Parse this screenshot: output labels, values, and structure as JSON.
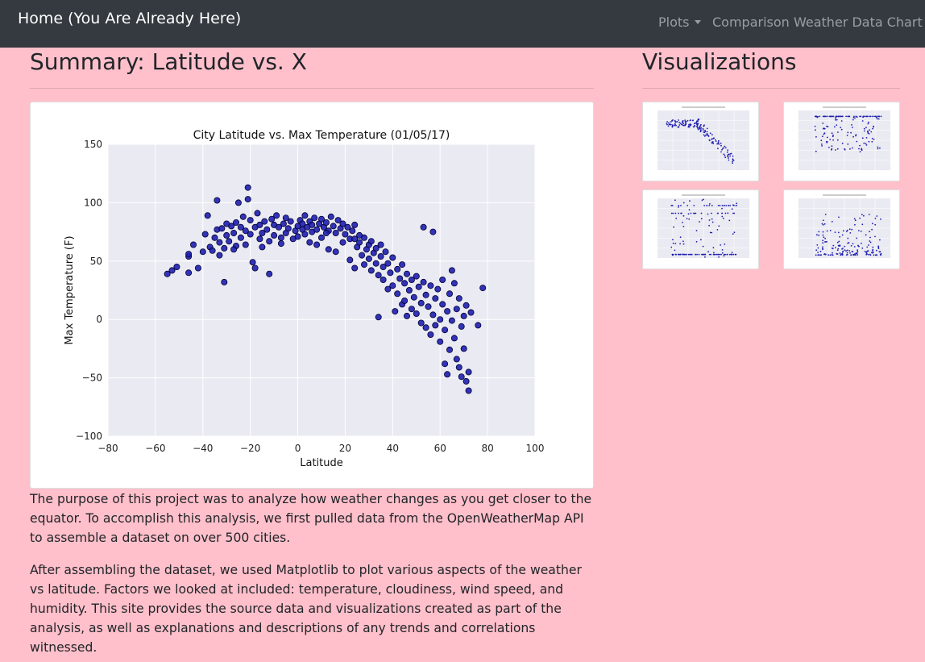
{
  "nav": {
    "brand": "Home (You Are Already Here)",
    "items": [
      {
        "label": "Plots",
        "dropdown": true
      },
      {
        "label": "Comparison"
      },
      {
        "label": "Weather Data Chart"
      }
    ]
  },
  "main": {
    "title": "Summary: Latitude vs. X",
    "paragraphs": [
      "The purpose of this project was to analyze how weather changes as you get closer to the equator. To accomplish this analysis, we first pulled data from the OpenWeatherMap API to assemble a dataset on over 500 cities.",
      "After assembling the dataset, we used Matplotlib to plot various aspects of the weather vs latitude. Factors we looked at included: temperature, cloudiness, wind speed, and humidity. This site provides the source data and visualizations created as part of the analysis, as well as explanations and descriptions of any trends and correlations witnessed."
    ]
  },
  "sidebar": {
    "title": "Visualizations",
    "thumbnails": [
      {
        "title": "City Latitude vs. Max Temperature (01/05/17)"
      },
      {
        "title": "City Latitude vs. Humidity (01/05/17)"
      },
      {
        "title": "City Latitude vs. Cloudiness (01/05/17)"
      },
      {
        "title": "City Latitude vs. Wind Speed (01/05/17)"
      }
    ]
  },
  "colors": {
    "background": "#ffc0cb",
    "navbar": "#343a40",
    "plot_bg": "#eaeaf2",
    "marker": "#1f1fb0",
    "marker_edge": "#000033"
  },
  "chart_data": {
    "type": "scatter",
    "title": "City Latitude vs. Max Temperature (01/05/17)",
    "xlabel": "Latitude",
    "ylabel": "Max Temperature (F)",
    "xlim": [
      -80,
      100
    ],
    "ylim": [
      -100,
      150
    ],
    "xticks": [
      -80,
      -60,
      -40,
      -20,
      0,
      20,
      40,
      60,
      80,
      100
    ],
    "yticks": [
      -100,
      -50,
      0,
      50,
      100,
      150
    ],
    "grid": true,
    "points": [
      [
        -55,
        39
      ],
      [
        -53,
        42
      ],
      [
        -51,
        45
      ],
      [
        -46,
        54
      ],
      [
        -46,
        40
      ],
      [
        -46,
        56
      ],
      [
        -44,
        64
      ],
      [
        -42,
        44
      ],
      [
        -40,
        58
      ],
      [
        -39,
        73
      ],
      [
        -38,
        89
      ],
      [
        -37,
        62
      ],
      [
        -36,
        59
      ],
      [
        -35,
        70
      ],
      [
        -34,
        77
      ],
      [
        -34,
        102
      ],
      [
        -33,
        66
      ],
      [
        -33,
        55
      ],
      [
        -32,
        78
      ],
      [
        -31,
        32
      ],
      [
        -31,
        61
      ],
      [
        -30,
        72
      ],
      [
        -29,
        67
      ],
      [
        -28,
        80
      ],
      [
        -27,
        74
      ],
      [
        -26,
        63
      ],
      [
        -26,
        83
      ],
      [
        -25,
        100
      ],
      [
        -24,
        79
      ],
      [
        -24,
        70
      ],
      [
        -23,
        88
      ],
      [
        -22,
        76
      ],
      [
        -22,
        64
      ],
      [
        -21,
        103
      ],
      [
        -21,
        113
      ],
      [
        -20,
        85
      ],
      [
        -20,
        73
      ],
      [
        -19,
        49
      ],
      [
        -18,
        79
      ],
      [
        -18,
        44
      ],
      [
        -17,
        91
      ],
      [
        -16,
        81
      ],
      [
        -16,
        69
      ],
      [
        -15,
        74
      ],
      [
        -14,
        84
      ],
      [
        -13,
        77
      ],
      [
        -12,
        39
      ],
      [
        -12,
        67
      ],
      [
        -11,
        86
      ],
      [
        -10,
        81
      ],
      [
        -10,
        72
      ],
      [
        -9,
        89
      ],
      [
        -8,
        79
      ],
      [
        -7,
        65
      ],
      [
        -6,
        82
      ],
      [
        -5,
        87
      ],
      [
        -5,
        74
      ],
      [
        -4,
        78
      ],
      [
        -3,
        84
      ],
      [
        -2,
        69
      ],
      [
        -1,
        76
      ],
      [
        0,
        80
      ],
      [
        0,
        71
      ],
      [
        1,
        85
      ],
      [
        2,
        77
      ],
      [
        2,
        82
      ],
      [
        3,
        89
      ],
      [
        3,
        73
      ],
      [
        4,
        79
      ],
      [
        5,
        84
      ],
      [
        6,
        75
      ],
      [
        6,
        81
      ],
      [
        7,
        87
      ],
      [
        8,
        64
      ],
      [
        8,
        77
      ],
      [
        9,
        82
      ],
      [
        10,
        70
      ],
      [
        10,
        86
      ],
      [
        11,
        79
      ],
      [
        12,
        83
      ],
      [
        13,
        60
      ],
      [
        13,
        76
      ],
      [
        14,
        88
      ],
      [
        15,
        80
      ],
      [
        16,
        58
      ],
      [
        16,
        74
      ],
      [
        17,
        85
      ],
      [
        18,
        78
      ],
      [
        19,
        66
      ],
      [
        19,
        82
      ],
      [
        20,
        73
      ],
      [
        21,
        79
      ],
      [
        22,
        51
      ],
      [
        22,
        69
      ],
      [
        23,
        76
      ],
      [
        24,
        44
      ],
      [
        24,
        81
      ],
      [
        25,
        62
      ],
      [
        26,
        72
      ],
      [
        26,
        66
      ],
      [
        27,
        55
      ],
      [
        28,
        70
      ],
      [
        28,
        47
      ],
      [
        29,
        60
      ],
      [
        30,
        64
      ],
      [
        30,
        52
      ],
      [
        31,
        42
      ],
      [
        31,
        67
      ],
      [
        32,
        57
      ],
      [
        33,
        48
      ],
      [
        33,
        61
      ],
      [
        34,
        2
      ],
      [
        34,
        38
      ],
      [
        35,
        54
      ],
      [
        36,
        45
      ],
      [
        36,
        34
      ],
      [
        37,
        58
      ],
      [
        38,
        26
      ],
      [
        38,
        48
      ],
      [
        39,
        40
      ],
      [
        40,
        53
      ],
      [
        40,
        29
      ],
      [
        41,
        7
      ],
      [
        42,
        43
      ],
      [
        42,
        22
      ],
      [
        43,
        35
      ],
      [
        44,
        47
      ],
      [
        44,
        13
      ],
      [
        45,
        31
      ],
      [
        46,
        39
      ],
      [
        46,
        3
      ],
      [
        47,
        25
      ],
      [
        48,
        34
      ],
      [
        48,
        9
      ],
      [
        49,
        19
      ],
      [
        50,
        37
      ],
      [
        50,
        5
      ],
      [
        51,
        28
      ],
      [
        52,
        14
      ],
      [
        52,
        -3
      ],
      [
        53,
        32
      ],
      [
        53,
        79
      ],
      [
        54,
        -7
      ],
      [
        54,
        21
      ],
      [
        55,
        11
      ],
      [
        56,
        29
      ],
      [
        56,
        -13
      ],
      [
        57,
        4
      ],
      [
        57,
        75
      ],
      [
        58,
        18
      ],
      [
        58,
        -5
      ],
      [
        59,
        26
      ],
      [
        60,
        0
      ],
      [
        60,
        -19
      ],
      [
        61,
        13
      ],
      [
        61,
        34
      ],
      [
        62,
        -9
      ],
      [
        62,
        -38
      ],
      [
        63,
        7
      ],
      [
        63,
        -47
      ],
      [
        64,
        22
      ],
      [
        64,
        -26
      ],
      [
        65,
        -1
      ],
      [
        65,
        42
      ],
      [
        66,
        -16
      ],
      [
        66,
        31
      ],
      [
        67,
        9
      ],
      [
        67,
        -34
      ],
      [
        68,
        -41
      ],
      [
        68,
        18
      ],
      [
        69,
        -6
      ],
      [
        69,
        -49
      ],
      [
        70,
        -25
      ],
      [
        70,
        3
      ],
      [
        71,
        -53
      ],
      [
        71,
        12
      ],
      [
        72,
        -45
      ],
      [
        72,
        -61
      ],
      [
        73,
        6
      ],
      [
        76,
        -5
      ],
      [
        78,
        27
      ],
      [
        -30,
        82
      ],
      [
        -27,
        60
      ],
      [
        -15,
        62
      ],
      [
        -7,
        70
      ],
      [
        5,
        66
      ],
      [
        12,
        74
      ],
      [
        24,
        69
      ],
      [
        35,
        64
      ],
      [
        45,
        16
      ]
    ]
  }
}
